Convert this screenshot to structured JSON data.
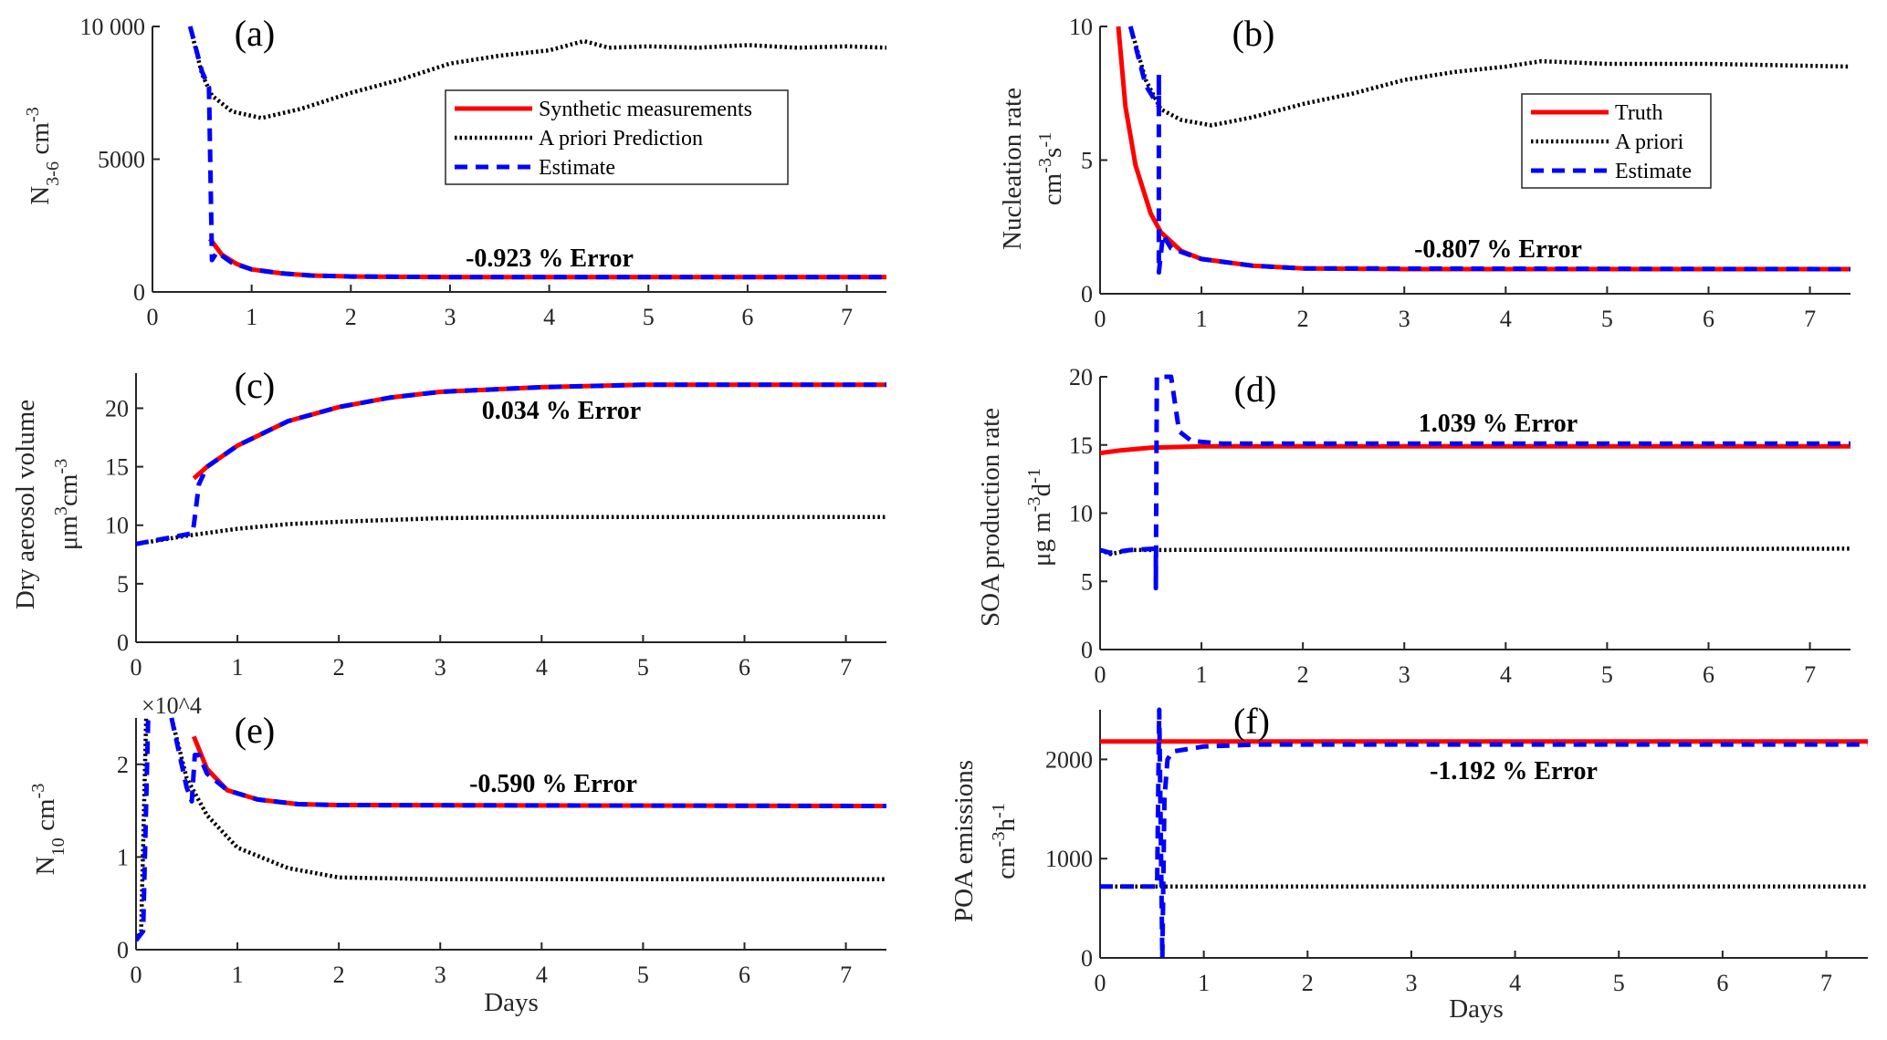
{
  "chart_data": [
    {
      "id": "a",
      "type": "line",
      "panel_label": "(a)",
      "xlim": [
        0,
        7.4
      ],
      "ylim": [
        0,
        10000
      ],
      "xticks": [
        0,
        1,
        2,
        3,
        4,
        5,
        6,
        7
      ],
      "yticks": [
        0,
        5000,
        10000
      ],
      "ytick_labels": [
        "0",
        "5000",
        "10 000"
      ],
      "ylabel_lines": [
        [
          {
            "t": "N"
          },
          {
            "t": "3-6",
            "s": "sub"
          },
          {
            "t": "  cm"
          },
          {
            "t": "-3",
            "s": "sup"
          }
        ]
      ],
      "xlabel": "",
      "annotation": "-0.923 % Error",
      "legend": {
        "position": "upper-right",
        "entries": [
          "Synthetic measurements",
          "A priori Prediction",
          "Estimate"
        ]
      },
      "series": [
        {
          "name": "Synthetic measurements",
          "style": "truth",
          "points": [
            [
              0.58,
              2000
            ],
            [
              0.7,
              1400
            ],
            [
              0.85,
              1050
            ],
            [
              1,
              850
            ],
            [
              1.3,
              700
            ],
            [
              1.6,
              620
            ],
            [
              2,
              580
            ],
            [
              3,
              560
            ],
            [
              7.4,
              560
            ]
          ]
        },
        {
          "name": "A priori Prediction",
          "style": "prior",
          "points": [
            [
              0.38,
              10000
            ],
            [
              0.5,
              8200
            ],
            [
              0.6,
              7400
            ],
            [
              0.8,
              6800
            ],
            [
              1.1,
              6550
            ],
            [
              1.5,
              6900
            ],
            [
              2,
              7500
            ],
            [
              2.5,
              8000
            ],
            [
              3,
              8600
            ],
            [
              3.5,
              8900
            ],
            [
              4,
              9100
            ],
            [
              4.35,
              9450
            ],
            [
              4.6,
              9200
            ],
            [
              5,
              9250
            ],
            [
              5.5,
              9200
            ],
            [
              6,
              9300
            ],
            [
              6.5,
              9200
            ],
            [
              7,
              9250
            ],
            [
              7.4,
              9200
            ]
          ]
        },
        {
          "name": "Estimate",
          "style": "est",
          "points": [
            [
              0.38,
              10000
            ],
            [
              0.5,
              8300
            ],
            [
              0.57,
              7700
            ],
            [
              0.6,
              1200
            ],
            [
              0.65,
              1500
            ],
            [
              0.8,
              1100
            ],
            [
              1,
              850
            ],
            [
              1.3,
              700
            ],
            [
              1.6,
              620
            ],
            [
              2,
              580
            ],
            [
              3,
              560
            ],
            [
              7.4,
              560
            ]
          ]
        }
      ]
    },
    {
      "id": "b",
      "type": "line",
      "panel_label": "(b)",
      "xlim": [
        0,
        7.4
      ],
      "ylim": [
        0,
        10
      ],
      "xticks": [
        0,
        1,
        2,
        3,
        4,
        5,
        6,
        7
      ],
      "yticks": [
        0,
        5,
        10
      ],
      "ytick_labels": [
        "0",
        "5",
        "10"
      ],
      "ylabel_lines": [
        [
          {
            "t": "Nucleation rate"
          }
        ],
        [
          {
            "t": "cm"
          },
          {
            "t": "-3",
            "s": "sup"
          },
          {
            "t": "s"
          },
          {
            "t": "-1",
            "s": "sup"
          }
        ]
      ],
      "xlabel": "",
      "annotation": "-0.807 % Error",
      "legend": {
        "position": "upper-right",
        "entries": [
          "Truth",
          "A priori",
          "Estimate"
        ]
      },
      "series": [
        {
          "name": "Truth",
          "style": "truth",
          "points": [
            [
              0.18,
              10
            ],
            [
              0.25,
              7
            ],
            [
              0.35,
              4.8
            ],
            [
              0.5,
              3
            ],
            [
              0.6,
              2.3
            ],
            [
              0.8,
              1.6
            ],
            [
              1,
              1.3
            ],
            [
              1.5,
              1.05
            ],
            [
              2,
              0.95
            ],
            [
              3,
              0.92
            ],
            [
              7.4,
              0.92
            ]
          ]
        },
        {
          "name": "A priori",
          "style": "prior",
          "points": [
            [
              0.3,
              10
            ],
            [
              0.45,
              8
            ],
            [
              0.6,
              6.9
            ],
            [
              0.8,
              6.5
            ],
            [
              1.1,
              6.3
            ],
            [
              1.5,
              6.6
            ],
            [
              2,
              7.1
            ],
            [
              2.5,
              7.5
            ],
            [
              3,
              8
            ],
            [
              3.5,
              8.3
            ],
            [
              4,
              8.5
            ],
            [
              4.35,
              8.7
            ],
            [
              5,
              8.6
            ],
            [
              6,
              8.6
            ],
            [
              7.4,
              8.5
            ]
          ]
        },
        {
          "name": "Estimate",
          "style": "est",
          "points": [
            [
              0.3,
              10
            ],
            [
              0.45,
              7.8
            ],
            [
              0.58,
              7
            ],
            [
              0.58,
              8.2
            ],
            [
              0.58,
              0.8
            ],
            [
              0.62,
              2.2
            ],
            [
              0.7,
              1.7
            ],
            [
              0.85,
              1.5
            ],
            [
              1,
              1.3
            ],
            [
              1.5,
              1.05
            ],
            [
              2,
              0.95
            ],
            [
              7.4,
              0.92
            ]
          ]
        }
      ]
    },
    {
      "id": "c",
      "type": "line",
      "panel_label": "(c)",
      "xlim": [
        0,
        7.4
      ],
      "ylim": [
        0,
        23
      ],
      "xticks": [
        0,
        1,
        2,
        3,
        4,
        5,
        6,
        7
      ],
      "yticks": [
        0,
        5,
        10,
        15,
        20
      ],
      "ytick_labels": [
        "0",
        "5",
        "10",
        "15",
        "20"
      ],
      "ylabel_lines": [
        [
          {
            "t": "Dry aerosol volume"
          }
        ],
        [
          {
            "t": "μm"
          },
          {
            "t": "3",
            "s": "sup"
          },
          {
            "t": "cm"
          },
          {
            "t": "-3",
            "s": "sup"
          }
        ]
      ],
      "xlabel": "",
      "annotation": "0.034 % Error",
      "series": [
        {
          "name": "Truth",
          "style": "truth",
          "points": [
            [
              0.57,
              14
            ],
            [
              0.7,
              15
            ],
            [
              1,
              16.8
            ],
            [
              1.5,
              18.9
            ],
            [
              2,
              20.1
            ],
            [
              2.5,
              20.9
            ],
            [
              3,
              21.4
            ],
            [
              4,
              21.8
            ],
            [
              5,
              22
            ],
            [
              7.4,
              22
            ]
          ]
        },
        {
          "name": "A priori",
          "style": "prior",
          "points": [
            [
              0,
              8.4
            ],
            [
              0.5,
              9.1
            ],
            [
              1,
              9.7
            ],
            [
              1.5,
              10.1
            ],
            [
              2,
              10.3
            ],
            [
              3,
              10.6
            ],
            [
              4,
              10.7
            ],
            [
              7.4,
              10.7
            ]
          ]
        },
        {
          "name": "Estimate",
          "style": "est",
          "points": [
            [
              0,
              8.4
            ],
            [
              0.55,
              9.3
            ],
            [
              0.57,
              10
            ],
            [
              0.62,
              13.5
            ],
            [
              0.7,
              15
            ],
            [
              1,
              16.8
            ],
            [
              1.5,
              18.9
            ],
            [
              2,
              20.1
            ],
            [
              2.5,
              20.9
            ],
            [
              3,
              21.4
            ],
            [
              4,
              21.8
            ],
            [
              5,
              22
            ],
            [
              7.4,
              22
            ]
          ]
        }
      ]
    },
    {
      "id": "d",
      "type": "line",
      "panel_label": "(d)",
      "xlim": [
        0,
        7.4
      ],
      "ylim": [
        0,
        20
      ],
      "xticks": [
        0,
        1,
        2,
        3,
        4,
        5,
        6,
        7
      ],
      "yticks": [
        0,
        5,
        10,
        15,
        20
      ],
      "ytick_labels": [
        "0",
        "5",
        "10",
        "15",
        "20"
      ],
      "ylabel_lines": [
        [
          {
            "t": "SOA production rate"
          }
        ],
        [
          {
            "t": "μg m"
          },
          {
            "t": "-3",
            "s": "sup"
          },
          {
            "t": "d"
          },
          {
            "t": "-1",
            "s": "sup"
          }
        ]
      ],
      "xlabel": "",
      "annotation": "1.039 % Error",
      "series": [
        {
          "name": "Truth",
          "style": "truth",
          "points": [
            [
              0,
              14.4
            ],
            [
              0.2,
              14.6
            ],
            [
              0.5,
              14.8
            ],
            [
              1,
              14.9
            ],
            [
              7.4,
              14.9
            ]
          ]
        },
        {
          "name": "A priori",
          "style": "prior",
          "points": [
            [
              0,
              7.3
            ],
            [
              0.1,
              7.0
            ],
            [
              0.3,
              7.3
            ],
            [
              7.4,
              7.4
            ]
          ]
        },
        {
          "name": "Estimate",
          "style": "est",
          "points": [
            [
              0,
              7.3
            ],
            [
              0.1,
              7.1
            ],
            [
              0.3,
              7.3
            ],
            [
              0.55,
              7.4
            ],
            [
              0.55,
              4.5
            ],
            [
              0.56,
              20
            ],
            [
              0.7,
              20
            ],
            [
              0.78,
              16
            ],
            [
              0.9,
              15.3
            ],
            [
              1.2,
              15.1
            ],
            [
              7.4,
              15.1
            ]
          ]
        }
      ]
    },
    {
      "id": "e",
      "type": "line",
      "panel_label": "(e)",
      "xlim": [
        0,
        7.4
      ],
      "ylim": [
        0,
        2.5
      ],
      "y_multiplier": "×10^4",
      "multiplier_parts": [
        {
          "t": "×10"
        },
        {
          "t": "4",
          "s": "sup"
        }
      ],
      "xticks": [
        0,
        1,
        2,
        3,
        4,
        5,
        6,
        7
      ],
      "yticks": [
        0,
        1,
        2
      ],
      "ytick_labels": [
        "0",
        "1",
        "2"
      ],
      "ylabel_lines": [
        [
          {
            "t": "N"
          },
          {
            "t": "10",
            "s": "sub"
          },
          {
            "t": "  cm"
          },
          {
            "t": "-3",
            "s": "sup"
          }
        ]
      ],
      "xlabel": "Days",
      "annotation": "-0.590 % Error",
      "series": [
        {
          "name": "Truth",
          "style": "truth",
          "points": [
            [
              0.57,
              2.3
            ],
            [
              0.7,
              1.95
            ],
            [
              0.9,
              1.72
            ],
            [
              1.2,
              1.62
            ],
            [
              1.6,
              1.57
            ],
            [
              2,
              1.56
            ],
            [
              7.4,
              1.55
            ]
          ]
        },
        {
          "name": "A priori",
          "style": "prior",
          "points": [
            [
              0,
              0.1
            ],
            [
              0.05,
              0.2
            ],
            [
              0.1,
              2.5
            ],
            null,
            [
              0.35,
              2.5
            ],
            [
              0.5,
              1.85
            ],
            [
              0.7,
              1.45
            ],
            [
              1,
              1.1
            ],
            [
              1.5,
              0.88
            ],
            [
              2,
              0.78
            ],
            [
              3,
              0.76
            ],
            [
              7.4,
              0.76
            ]
          ]
        },
        {
          "name": "Estimate",
          "style": "est",
          "points": [
            [
              0,
              0.1
            ],
            [
              0.07,
              0.2
            ],
            [
              0.12,
              2.5
            ],
            null,
            [
              0.35,
              2.5
            ],
            [
              0.5,
              1.75
            ],
            [
              0.55,
              1.6
            ],
            [
              0.58,
              2.1
            ],
            [
              0.62,
              2.1
            ],
            [
              0.7,
              1.9
            ],
            [
              0.9,
              1.72
            ],
            [
              1.2,
              1.62
            ],
            [
              1.6,
              1.57
            ],
            [
              2,
              1.56
            ],
            [
              7.4,
              1.55
            ]
          ]
        }
      ]
    },
    {
      "id": "f",
      "type": "line",
      "panel_label": "(f)",
      "xlim": [
        0,
        7.4
      ],
      "ylim": [
        0,
        2500
      ],
      "xticks": [
        0,
        1,
        2,
        3,
        4,
        5,
        6,
        7
      ],
      "yticks": [
        0,
        1000,
        2000
      ],
      "ytick_labels": [
        "0",
        "1000",
        "2000"
      ],
      "ylabel_lines": [
        [
          {
            "t": "POA emissions"
          }
        ],
        [
          {
            "t": "cm"
          },
          {
            "t": "-3",
            "s": "sup"
          },
          {
            "t": "h"
          },
          {
            "t": "-1",
            "s": "sup"
          }
        ]
      ],
      "xlabel": "Days",
      "annotation": "-1.192 % Error",
      "series": [
        {
          "name": "Truth",
          "style": "truth",
          "points": [
            [
              0,
              2180
            ],
            [
              7.4,
              2180
            ]
          ]
        },
        {
          "name": "A priori",
          "style": "prior",
          "points": [
            [
              0,
              720
            ],
            [
              7.4,
              720
            ]
          ]
        },
        {
          "name": "Estimate",
          "style": "est",
          "points": [
            [
              0,
              720
            ],
            [
              0.55,
              720
            ],
            [
              0.57,
              2500
            ],
            [
              0.6,
              0
            ],
            [
              0.62,
              1600
            ],
            [
              0.65,
              2000
            ],
            [
              0.7,
              2080
            ],
            [
              1,
              2130
            ],
            [
              1.5,
              2150
            ],
            [
              7.4,
              2150
            ]
          ]
        }
      ]
    }
  ],
  "colors": {
    "truth": "#ff0000",
    "prior": "#000000",
    "estimate": "#0000ff",
    "axis": "#262626"
  }
}
